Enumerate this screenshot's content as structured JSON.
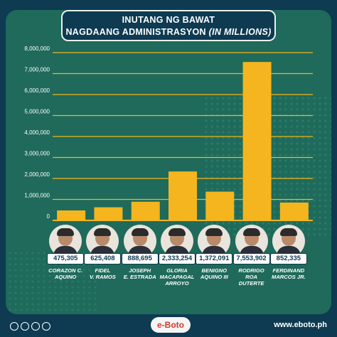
{
  "title": {
    "line1": "INUTANG NG BAWAT",
    "line2": "NAGDAANG ADMINISTRASYON",
    "units": "(IN MILLIONS)"
  },
  "colors": {
    "background": "#0e3a52",
    "panel": "#1f6a5a",
    "bar": "#f4b51e",
    "grid": "#f4b51e"
  },
  "chart_data": {
    "type": "bar",
    "title": "INUTANG NG BAWAT NAGDAANG ADMINISTRASYON (IN MILLIONS)",
    "categories": [
      "CORAZON C. AQUINO",
      "FIDEL V. RAMOS",
      "JOSEPH E. ESTRADA",
      "GLORIA MACAPAGAL ARROYO",
      "BENIGNO AQUINO III",
      "RODRIGO ROA DUTERTE",
      "FERDINAND MARCOS JR."
    ],
    "values": [
      475305,
      625408,
      888695,
      2333254,
      1372091,
      7553902,
      852335
    ],
    "value_labels": [
      "475,305",
      "625,408",
      "888,695",
      "2,333,254",
      "1,372,091",
      "7,553,902",
      "852,335"
    ],
    "yticks": [
      0,
      1000000,
      2000000,
      3000000,
      4000000,
      5000000,
      6000000,
      7000000,
      8000000
    ],
    "ytick_labels": [
      "0",
      "1,000,000",
      "2,000,000",
      "3,000,000",
      "4,000,000",
      "5,000,000",
      "6,000,000",
      "7,000,000",
      "8,000,000"
    ],
    "ylim": [
      0,
      8000000
    ],
    "grid": true,
    "xlabel": "",
    "ylabel": ""
  },
  "presidents": [
    {
      "name_line1": "CORAZON C.",
      "name_line2": "AQUINO",
      "name_line3": ""
    },
    {
      "name_line1": "FIDEL",
      "name_line2": "V. RAMOS",
      "name_line3": ""
    },
    {
      "name_line1": "JOSEPH",
      "name_line2": "E. ESTRADA",
      "name_line3": ""
    },
    {
      "name_line1": "GLORIA",
      "name_line2": "MACAPAGAL",
      "name_line3": "ARROYO"
    },
    {
      "name_line1": "BENIGNO",
      "name_line2": "AQUINO III",
      "name_line3": ""
    },
    {
      "name_line1": "RODRIGO",
      "name_line2": "ROA",
      "name_line3": "DUTERTE"
    },
    {
      "name_line1": "FERDINAND",
      "name_line2": "MARCOS JR.",
      "name_line3": ""
    }
  ],
  "footer": {
    "brand": "e-Boto",
    "website": "www.eboto.ph",
    "social_icons": [
      "facebook-icon",
      "twitter-icon",
      "instagram-icon",
      "youtube-icon"
    ]
  }
}
